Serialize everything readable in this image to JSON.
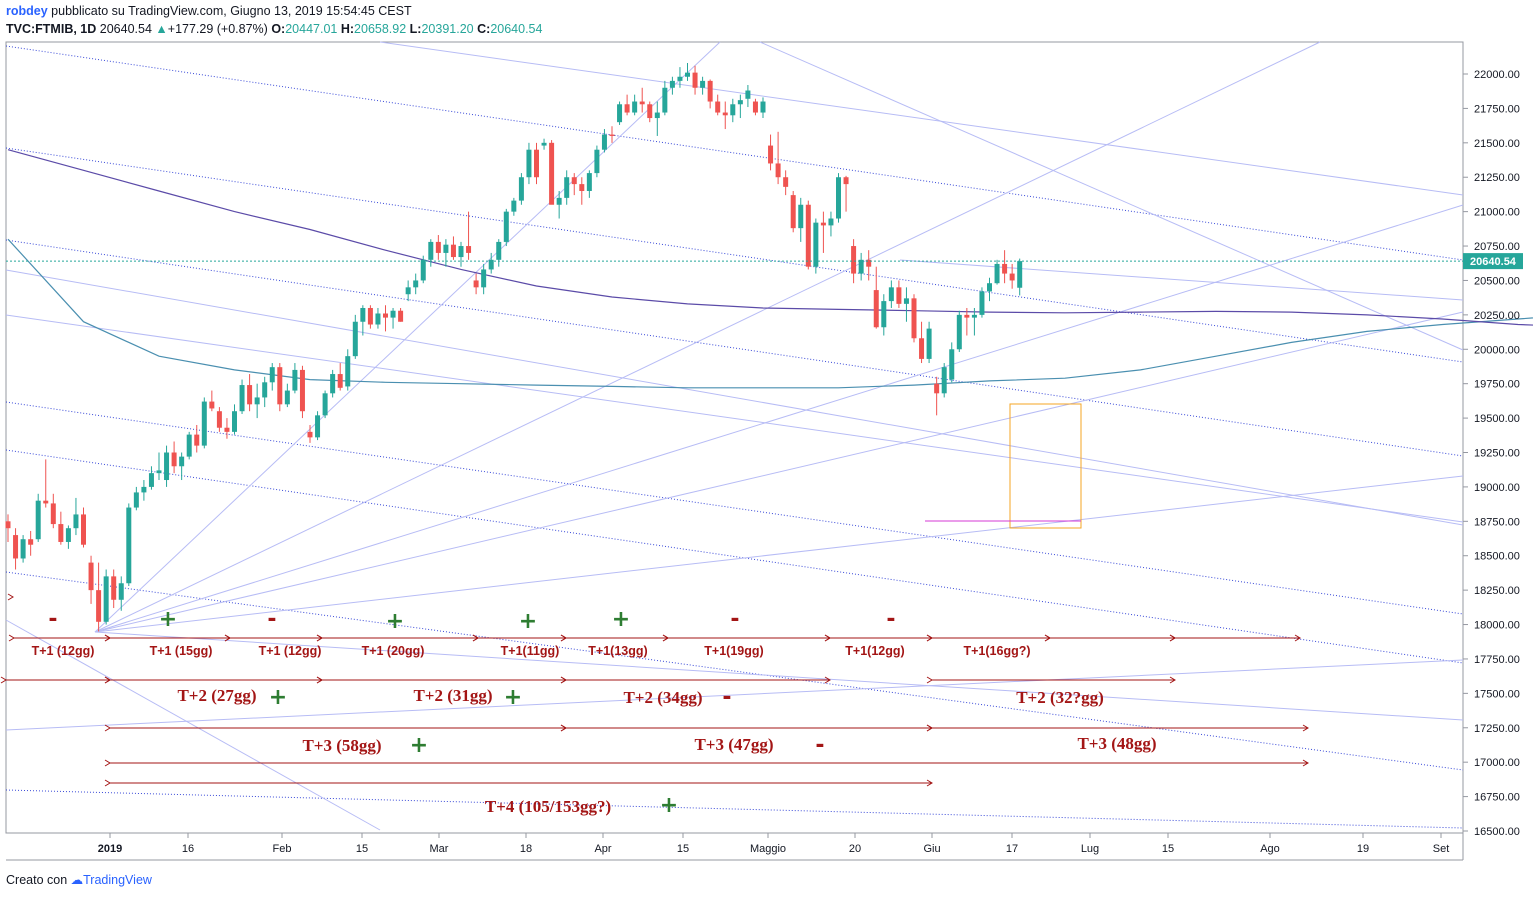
{
  "header": {
    "user": "robdey",
    "published": "pubblicato su TradingView.com, Giugno 13, 2019 15:54:45 CEST",
    "symbol": "TVC:FTMIB, 1D",
    "last": "20640.54",
    "change": "+177.29 (+0.87%)",
    "o_label": "O:",
    "o": "20447.01",
    "h_label": "H:",
    "h": "20658.92",
    "l_label": "L:",
    "l": "20391.20",
    "c_label": "C:",
    "c": "20640.54"
  },
  "footer": {
    "created": "Creato con",
    "brand": "TradingView"
  },
  "colors": {
    "up": "#26a69a",
    "down": "#ef5350",
    "channel": "#3a4ad8",
    "fan": "#b7bcf5",
    "ma_blue": "#4a8fb0",
    "ma_purple": "#5b4ba8",
    "ann_red": "#a31515",
    "ann_green": "#2e7d32",
    "price_tag": "#26a69a",
    "box": "#f5a623",
    "magenta": "#d63ad6"
  },
  "chart_data": {
    "type": "candlestick",
    "symbol": "TVC:FTMIB",
    "interval": "1D",
    "last_price": 20640.54,
    "price_axis": [
      "22000.00",
      "21750.00",
      "21500.00",
      "21250.00",
      "21000.00",
      "20750.00",
      "20500.00",
      "20250.00",
      "20000.00",
      "19750.00",
      "19500.00",
      "19250.00",
      "19000.00",
      "18750.00",
      "18500.00",
      "18250.00",
      "18000.00",
      "17750.00",
      "17500.00",
      "17250.00",
      "17000.00",
      "16750.00",
      "16500.00"
    ],
    "ylim": [
      16500,
      22100
    ],
    "date_axis": [
      "2019",
      "16",
      "Feb",
      "15",
      "Mar",
      "18",
      "Apr",
      "15",
      "Maggio",
      "20",
      "Giu",
      "17",
      "Lug",
      "15",
      "Ago",
      "19",
      "Set"
    ],
    "candles": [
      [
        18750,
        18800,
        18600,
        18700
      ],
      [
        18650,
        18700,
        18400,
        18480
      ],
      [
        18480,
        18650,
        18450,
        18620
      ],
      [
        18620,
        18680,
        18500,
        18580
      ],
      [
        18620,
        18950,
        18600,
        18900
      ],
      [
        18900,
        19200,
        18850,
        18880
      ],
      [
        18880,
        18950,
        18700,
        18730
      ],
      [
        18730,
        18820,
        18580,
        18600
      ],
      [
        18600,
        18720,
        18550,
        18700
      ],
      [
        18700,
        18920,
        18650,
        18800
      ],
      [
        18800,
        18850,
        18560,
        18580
      ],
      [
        18450,
        18500,
        18150,
        18250
      ],
      [
        18250,
        18450,
        17950,
        18020
      ],
      [
        18020,
        18400,
        18000,
        18350
      ],
      [
        18350,
        18400,
        18120,
        18180
      ],
      [
        18180,
        18350,
        18100,
        18300
      ],
      [
        18300,
        18880,
        18280,
        18850
      ],
      [
        18850,
        19000,
        18830,
        18960
      ],
      [
        18960,
        19050,
        18900,
        19000
      ],
      [
        19000,
        19150,
        18980,
        19100
      ],
      [
        19100,
        19250,
        19050,
        19120
      ],
      [
        19050,
        19300,
        19000,
        19250
      ],
      [
        19250,
        19330,
        19100,
        19150
      ],
      [
        19150,
        19250,
        19050,
        19220
      ],
      [
        19220,
        19400,
        19200,
        19380
      ],
      [
        19380,
        19450,
        19250,
        19300
      ],
      [
        19300,
        19650,
        19280,
        19620
      ],
      [
        19620,
        19700,
        19550,
        19570
      ],
      [
        19550,
        19580,
        19400,
        19430
      ],
      [
        19430,
        19500,
        19350,
        19400
      ],
      [
        19400,
        19600,
        19380,
        19550
      ],
      [
        19550,
        19780,
        19530,
        19740
      ],
      [
        19740,
        19820,
        19550,
        19600
      ],
      [
        19600,
        19750,
        19500,
        19650
      ],
      [
        19650,
        19800,
        19580,
        19760
      ],
      [
        19760,
        19900,
        19700,
        19870
      ],
      [
        19870,
        19900,
        19550,
        19600
      ],
      [
        19600,
        19750,
        19580,
        19700
      ],
      [
        19700,
        19900,
        19680,
        19850
      ],
      [
        19850,
        19880,
        19500,
        19550
      ],
      [
        19400,
        19450,
        19320,
        19360
      ],
      [
        19360,
        19550,
        19340,
        19520
      ],
      [
        19520,
        19700,
        19500,
        19680
      ],
      [
        19680,
        19850,
        19650,
        19820
      ],
      [
        19820,
        19900,
        19700,
        19720
      ],
      [
        19730,
        20000,
        19700,
        19950
      ],
      [
        19950,
        20250,
        19930,
        20200
      ],
      [
        20200,
        20320,
        20100,
        20300
      ],
      [
        20300,
        20320,
        20150,
        20180
      ],
      [
        20180,
        20300,
        20150,
        20260
      ],
      [
        20260,
        20320,
        20130,
        20230
      ],
      [
        20230,
        20300,
        20150,
        20280
      ],
      [
        20280,
        20300,
        20200,
        20200
      ],
      [
        20400,
        20500,
        20350,
        20450
      ],
      [
        20450,
        20550,
        20400,
        20500
      ],
      [
        20500,
        20680,
        20480,
        20650
      ],
      [
        20650,
        20800,
        20600,
        20780
      ],
      [
        20780,
        20830,
        20650,
        20700
      ],
      [
        20700,
        20800,
        20600,
        20760
      ],
      [
        20760,
        20820,
        20650,
        20670
      ],
      [
        20670,
        20780,
        20600,
        20750
      ],
      [
        20750,
        21000,
        20650,
        20700
      ],
      [
        20500,
        20550,
        20400,
        20450
      ],
      [
        20450,
        20620,
        20400,
        20580
      ],
      [
        20580,
        20700,
        20550,
        20650
      ],
      [
        20650,
        20800,
        20600,
        20780
      ],
      [
        20780,
        21020,
        20750,
        21000
      ],
      [
        21000,
        21100,
        20970,
        21080
      ],
      [
        21080,
        21280,
        21050,
        21250
      ],
      [
        21250,
        21500,
        21200,
        21450
      ],
      [
        21450,
        21500,
        21200,
        21250
      ],
      [
        21480,
        21530,
        21450,
        21500
      ],
      [
        21500,
        21520,
        21100,
        21050
      ],
      [
        21050,
        21150,
        20950,
        21100
      ],
      [
        21100,
        21300,
        21050,
        21250
      ],
      [
        21250,
        21280,
        21120,
        21200
      ],
      [
        21200,
        21250,
        21050,
        21150
      ],
      [
        21150,
        21300,
        21100,
        21280
      ],
      [
        21280,
        21480,
        21250,
        21450
      ],
      [
        21450,
        21600,
        21430,
        21560
      ],
      [
        21560,
        21620,
        21500,
        21550
      ],
      [
        21650,
        21800,
        21630,
        21780
      ],
      [
        21780,
        21850,
        21700,
        21720
      ],
      [
        21720,
        21850,
        21700,
        21800
      ],
      [
        21800,
        21900,
        21720,
        21780
      ],
      [
        21780,
        21800,
        21650,
        21680
      ],
      [
        21680,
        21800,
        21550,
        21720
      ],
      [
        21720,
        21950,
        21700,
        21900
      ],
      [
        21900,
        21980,
        21850,
        21950
      ],
      [
        21950,
        22050,
        21900,
        21980
      ],
      [
        21980,
        22080,
        21950,
        22010
      ],
      [
        22010,
        22060,
        21850,
        21900
      ],
      [
        21900,
        21980,
        21850,
        21950
      ],
      [
        21950,
        21960,
        21750,
        21800
      ],
      [
        21800,
        21850,
        21700,
        21720
      ],
      [
        21720,
        21800,
        21600,
        21700
      ],
      [
        21700,
        21820,
        21650,
        21780
      ],
      [
        21780,
        21850,
        21680,
        21810
      ],
      [
        21820,
        21920,
        21760,
        21880
      ],
      [
        21800,
        21820,
        21700,
        21720
      ],
      [
        21720,
        21830,
        21680,
        21800
      ],
      [
        21480,
        21560,
        21300,
        21350
      ],
      [
        21350,
        21580,
        21200,
        21250
      ],
      [
        21250,
        21300,
        21120,
        21180
      ],
      [
        21120,
        21150,
        20850,
        20880
      ],
      [
        20880,
        21100,
        20780,
        21050
      ],
      [
        21050,
        21080,
        20580,
        20600
      ],
      [
        20600,
        20950,
        20550,
        20920
      ],
      [
        20920,
        21000,
        20700,
        20900
      ],
      [
        20900,
        21000,
        20820,
        20950
      ],
      [
        20950,
        21280,
        20920,
        21250
      ],
      [
        21250,
        21260,
        21000,
        21200
      ],
      [
        20750,
        20800,
        20480,
        20550
      ],
      [
        20550,
        20700,
        20500,
        20650
      ],
      [
        20650,
        20720,
        20500,
        20600
      ],
      [
        20430,
        20600,
        20150,
        20160
      ],
      [
        20160,
        20400,
        20100,
        20350
      ],
      [
        20350,
        20500,
        20300,
        20450
      ],
      [
        20450,
        20500,
        20300,
        20330
      ],
      [
        20330,
        20450,
        20200,
        20370
      ],
      [
        20370,
        20400,
        20050,
        20080
      ],
      [
        20080,
        20200,
        19900,
        19930
      ],
      [
        19930,
        20200,
        19900,
        20150
      ],
      [
        19750,
        19800,
        19520,
        19680
      ],
      [
        19680,
        19900,
        19650,
        19870
      ],
      [
        19780,
        20050,
        19760,
        20000
      ],
      [
        20000,
        20280,
        19980,
        20250
      ],
      [
        20250,
        20300,
        20100,
        20230
      ],
      [
        20230,
        20300,
        20100,
        20250
      ],
      [
        20250,
        20450,
        20230,
        20420
      ],
      [
        20420,
        20520,
        20350,
        20480
      ],
      [
        20480,
        20650,
        20470,
        20620
      ],
      [
        20620,
        20720,
        20480,
        20550
      ],
      [
        20550,
        20620,
        20440,
        20500
      ],
      [
        20447.01,
        20658.92,
        20391.2,
        20640.54
      ]
    ],
    "moving_averages": [
      {
        "color": "#4a8fb0",
        "points": [
          [
            0,
            20800
          ],
          [
            10,
            20200
          ],
          [
            20,
            19950
          ],
          [
            30,
            19850
          ],
          [
            40,
            19780
          ],
          [
            50,
            19760
          ],
          [
            60,
            19750
          ],
          [
            70,
            19740
          ],
          [
            80,
            19730
          ],
          [
            90,
            19720
          ],
          [
            100,
            19720
          ],
          [
            110,
            19720
          ],
          [
            120,
            19740
          ],
          [
            130,
            19770
          ],
          [
            140,
            19790
          ],
          [
            150,
            19850
          ],
          [
            160,
            19950
          ],
          [
            170,
            20050
          ],
          [
            180,
            20130
          ],
          [
            190,
            20180
          ],
          [
            200,
            20220
          ],
          [
            205,
            20240
          ],
          [
            210,
            20280
          ],
          [
            215,
            20310
          ],
          [
            220,
            20330
          ]
        ]
      },
      {
        "color": "#5b4ba8",
        "points": [
          [
            0,
            21450
          ],
          [
            10,
            21300
          ],
          [
            20,
            21150
          ],
          [
            30,
            21000
          ],
          [
            40,
            20870
          ],
          [
            50,
            20720
          ],
          [
            60,
            20580
          ],
          [
            70,
            20460
          ],
          [
            80,
            20380
          ],
          [
            90,
            20330
          ],
          [
            100,
            20300
          ],
          [
            110,
            20290
          ],
          [
            120,
            20280
          ],
          [
            130,
            20270
          ],
          [
            140,
            20265
          ],
          [
            150,
            20270
          ],
          [
            160,
            20275
          ],
          [
            170,
            20270
          ],
          [
            180,
            20250
          ],
          [
            190,
            20220
          ],
          [
            200,
            20180
          ],
          [
            205,
            20170
          ],
          [
            210,
            20160
          ],
          [
            215,
            20160
          ]
        ]
      }
    ],
    "annotations": {
      "signs": [
        {
          "text": "-",
          "color": "#a31515",
          "x": 53,
          "y": 620
        },
        {
          "text": "+",
          "color": "#2e7d32",
          "x": 168,
          "y": 620
        },
        {
          "text": "-",
          "color": "#a31515",
          "x": 272,
          "y": 620
        },
        {
          "text": "+",
          "color": "#2e7d32",
          "x": 395,
          "y": 622
        },
        {
          "text": "+",
          "color": "#2e7d32",
          "x": 528,
          "y": 622
        },
        {
          "text": "+",
          "color": "#2e7d32",
          "x": 621,
          "y": 620
        },
        {
          "text": "-",
          "color": "#a31515",
          "x": 735,
          "y": 620
        },
        {
          "text": "-",
          "color": "#a31515",
          "x": 891,
          "y": 620
        }
      ],
      "t1_labels": [
        "T+1 (12gg)",
        "T+1 (15gg)",
        "T+1 (12gg)",
        "T+1 (20gg)",
        "T+1(11gg)",
        "T+1(13gg)",
        "T+1(19gg)",
        "T+1(12gg)",
        "T+1(16gg?)"
      ],
      "t2_labels": [
        "T+2 (27gg)",
        "T+2 (31gg)",
        "T+2 (34gg)",
        "T+2 (32?gg)"
      ],
      "t3_labels": [
        "T+3 (58gg)",
        "T+3 (47gg)",
        "T+3 (48gg)"
      ],
      "t4_labels": [
        "T+4 (105/153gg?)"
      ],
      "extra_signs": [
        {
          "text": "+",
          "color": "#2e7d32"
        },
        {
          "text": "+",
          "color": "#2e7d32"
        },
        {
          "text": "-",
          "color": "#a31515"
        },
        {
          "text": "+",
          "color": "#2e7d32"
        },
        {
          "text": "-",
          "color": "#a31515"
        },
        {
          "text": "+",
          "color": "#2e7d32"
        }
      ]
    }
  }
}
